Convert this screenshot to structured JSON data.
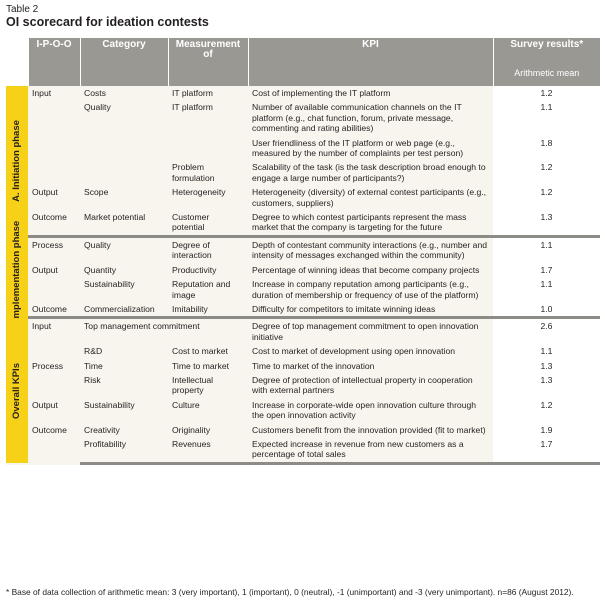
{
  "table_label": "Table 2",
  "title": "OI scorecard for ideation contests",
  "headers": {
    "ipoo": "I-P-O-O",
    "category": "Category",
    "measurement": "Measurement of",
    "kpi": "KPI",
    "survey": "Survey results*",
    "survey_sub": "Arithmetic mean"
  },
  "phases": {
    "a": "A. Initiation phase",
    "b": "B. Implementation phase",
    "c": "Overall KPIs"
  },
  "rows": [
    {
      "ipoo": "Input",
      "category": "Costs",
      "measurement": "IT platform",
      "kpi": "Cost of implementing the IT platform",
      "value": "1.2"
    },
    {
      "ipoo": "",
      "category": "Quality",
      "measurement": "IT platform",
      "kpi": "Number of available communication channels on the IT platform (e.g., chat function, forum, private message, commenting and rating abilities)",
      "value": "1.1"
    },
    {
      "ipoo": "",
      "category": "",
      "measurement": "",
      "kpi": "User friendliness of the IT platform or web page (e.g., measured by the number of complaints per test person)",
      "value": "1.8"
    },
    {
      "ipoo": "",
      "category": "",
      "measurement": "Problem formulation",
      "kpi": "Scalability of the task (is the task description broad enough to engage a large number of participants?)",
      "value": "1.2"
    },
    {
      "ipoo": "Output",
      "category": "Scope",
      "measurement": "Heterogeneity",
      "kpi": "Heterogeneity (diversity) of external contest participants (e.g., customers, suppliers)",
      "value": "1.2"
    },
    {
      "ipoo": "Outcome",
      "category": "Market potential",
      "measurement": "Customer potential",
      "kpi": "Degree to which contest participants represent the mass market that the company is targeting for the future",
      "value": "1.3"
    },
    {
      "ipoo": "Process",
      "category": "Quality",
      "measurement": "Degree of interaction",
      "kpi": "Depth of contestant community interactions (e.g., number and intensity of messages exchanged within the community)",
      "value": "1.1"
    },
    {
      "ipoo": "Output",
      "category": "Quantity",
      "measurement": "Productivity",
      "kpi": "Percentage of winning ideas that become company projects",
      "value": "1.7"
    },
    {
      "ipoo": "",
      "category": "Sustainability",
      "measurement": "Reputation and image",
      "kpi": "Increase in company reputation among participants (e.g., duration of membership or frequency of use of the platform)",
      "value": "1.1"
    },
    {
      "ipoo": "Outcome",
      "category": "Commercialization",
      "measurement": "Imitability",
      "kpi": "Difficulty for competitors to imitate winning ideas",
      "value": "1.0"
    },
    {
      "ipoo": "Input",
      "category": "Top management commitment",
      "measurement": "",
      "kpi": "Degree of top management commitment to open innovation initiative",
      "value": "2.6"
    },
    {
      "ipoo": "",
      "category": "R&D",
      "measurement": "Cost to market",
      "kpi": "Cost to market of development using open innovation",
      "value": "1.1"
    },
    {
      "ipoo": "Process",
      "category": "Time",
      "measurement": "Time to market",
      "kpi": "Time to market of the innovation",
      "value": "1.3"
    },
    {
      "ipoo": "",
      "category": "Risk",
      "measurement": "Intellectual property",
      "kpi": "Degree of protection of intellectual property in cooperation with external partners",
      "value": "1.3"
    },
    {
      "ipoo": "Output",
      "category": "Sustainability",
      "measurement": "Culture",
      "kpi": "Increase in corporate-wide open innovation culture through the open innovation activity",
      "value": "1.2"
    },
    {
      "ipoo": "Outcome",
      "category": "Creativity",
      "measurement": "Originality",
      "kpi": "Customers benefit from the innovation provided (fit to market)",
      "value": "1.9"
    },
    {
      "ipoo": "",
      "category": "Profitability",
      "measurement": "Revenues",
      "kpi": "Expected increase in revenue from new customers as a percentage of total sales",
      "value": "1.7"
    }
  ],
  "footnote": "* Base of data collection of arithmetic mean: 3 (very important), 1 (important), 0 (neutral), -1 (unimportant) and -3 (very unimportant). n=86 (August 2012).",
  "colors": {
    "header_bg": "#9a9893",
    "phase_bg": "#f6d117",
    "row_bg": "#f7f5ee",
    "value_bg": "#ffffff"
  }
}
